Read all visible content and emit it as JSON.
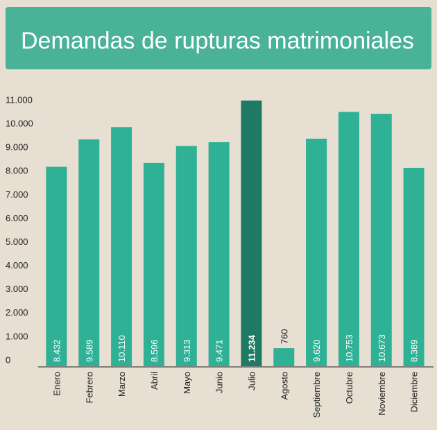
{
  "chart_data": {
    "type": "bar",
    "title": "Demandas de rupturas matrimoniales",
    "categories": [
      "Enero",
      "Febrero",
      "Marzo",
      "Abril",
      "Mayo",
      "Junio",
      "Julio",
      "Agosto",
      "Septiembre",
      "Octubre",
      "Noviembre",
      "Diciembre"
    ],
    "values": [
      8432,
      9589,
      10110,
      8596,
      9313,
      9471,
      11234,
      760,
      9620,
      10753,
      10673,
      8389
    ],
    "value_labels": [
      "8.432",
      "9.589",
      "10.110",
      "8.596",
      "9.313",
      "9.471",
      "11.234",
      "760",
      "9.620",
      "10.753",
      "10.673",
      "8.389"
    ],
    "colors": [
      "#2fb195",
      "#2fb195",
      "#2fb195",
      "#2fb195",
      "#2fb195",
      "#2fb195",
      "#1e7a64",
      "#2fb195",
      "#2fb195",
      "#2fb195",
      "#2fb195",
      "#2fb195"
    ],
    "ylim": [
      0,
      11300
    ],
    "yticks": [
      0,
      {
        "value": 1000,
        "label": "1.000"
      },
      {
        "value": 2000,
        "label": "2.000"
      },
      {
        "value": 3000,
        "label": "3.000"
      },
      {
        "value": 4000,
        "label": "4.000"
      },
      {
        "value": 5000,
        "label": "5.000"
      },
      {
        "value": 6000,
        "label": "6.000"
      },
      {
        "value": 7000,
        "label": "7.000"
      },
      {
        "value": 8000,
        "label": "8.000"
      },
      {
        "value": 9000,
        "label": "9.000"
      },
      {
        "value": 10000,
        "label": "10.000"
      },
      {
        "value": 11000,
        "label": "11.000"
      }
    ],
    "grid": false
  }
}
